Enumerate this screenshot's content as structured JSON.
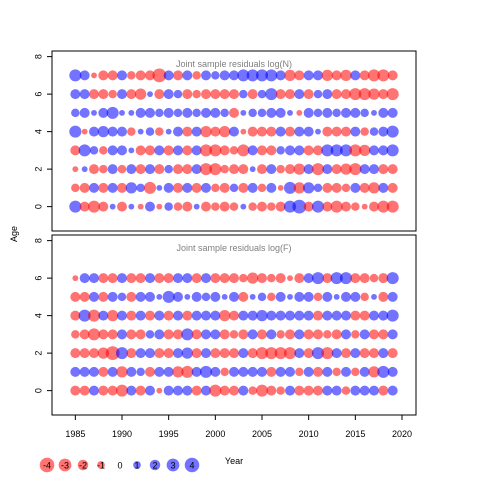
{
  "chart_data": {
    "type": "scatter",
    "encoding": "bubble",
    "xlabel": "Year",
    "ylabel": "Age",
    "xlim": [
      1982.5,
      2021.5
    ],
    "ylim": [
      -1.3,
      8.3
    ],
    "x_ticks": [
      "1985",
      "1990",
      "1995",
      "2000",
      "2005",
      "2010",
      "2015",
      "2020"
    ],
    "y_ticks": [
      "0",
      "2",
      "4",
      "6",
      "8"
    ],
    "years": [
      1985,
      1986,
      1987,
      1988,
      1989,
      1990,
      1991,
      1992,
      1993,
      1994,
      1995,
      1996,
      1997,
      1998,
      1999,
      2000,
      2001,
      2002,
      2003,
      2004,
      2005,
      2006,
      2007,
      2008,
      2009,
      2010,
      2011,
      2012,
      2013,
      2014,
      2015,
      2016,
      2017,
      2018,
      2019
    ],
    "colors": {
      "positive": "#0000ff",
      "negative": "#ff0000"
    },
    "panels": [
      {
        "title": "Joint sample residuals log(N)",
        "ages": [
          0,
          1,
          2,
          3,
          4,
          5,
          6,
          7
        ],
        "residuals": [
          [
            1.5,
            -1.0,
            -1.5,
            -1.0,
            0.3,
            -1.0,
            0.3,
            -0.3,
            1.0,
            -0.3,
            0.7,
            -0.7,
            -1.0,
            0.3,
            -1.0,
            -0.7,
            -1.0,
            -0.7,
            0.3,
            -0.7,
            -1.0,
            -0.7,
            -1.0,
            1.5,
            2.0,
            -1.0,
            1.5,
            -1.0,
            -1.5,
            -1.0,
            -0.7,
            -0.3,
            -1.0,
            -1.5,
            -1.5
          ],
          [
            -0.7,
            -1.0,
            1.0,
            -1.0,
            1.0,
            -1.0,
            1.3,
            0.7,
            -1.5,
            0.3,
            1.0,
            -1.0,
            1.0,
            -1.0,
            1.0,
            -0.7,
            -1.0,
            0.7,
            -1.0,
            1.0,
            -0.7,
            1.0,
            -0.3,
            1.5,
            -1.3,
            1.3,
            0.7,
            -1.0,
            -1.0,
            -0.7,
            1.0,
            -1.0,
            -1.3,
            1.0,
            -1.0
          ],
          [
            -0.3,
            0.3,
            -1.0,
            -0.7,
            1.0,
            -0.7,
            1.0,
            -1.0,
            1.0,
            -1.0,
            0.7,
            -1.0,
            -1.0,
            1.0,
            -1.5,
            -1.5,
            -0.7,
            -1.0,
            -1.0,
            0.3,
            -1.0,
            1.0,
            -0.7,
            -1.0,
            -1.3,
            1.0,
            -1.5,
            1.0,
            -1.0,
            -1.3,
            -1.5,
            1.0,
            1.0,
            -1.0,
            -1.0
          ],
          [
            -1.0,
            1.5,
            0.7,
            -0.7,
            1.0,
            1.0,
            0.3,
            -1.0,
            -1.0,
            1.0,
            -1.0,
            1.0,
            -1.0,
            1.0,
            -1.5,
            -1.5,
            -1.0,
            -0.7,
            -1.5,
            1.0,
            -1.0,
            -1.0,
            0.7,
            1.0,
            1.0,
            -1.0,
            -1.0,
            1.5,
            1.5,
            1.5,
            -1.5,
            -1.3,
            1.0,
            1.0,
            1.5
          ],
          [
            1.5,
            -0.3,
            1.0,
            1.3,
            1.0,
            1.0,
            -0.7,
            0.3,
            0.7,
            -0.7,
            0.3,
            1.0,
            -1.0,
            1.0,
            -1.3,
            -1.0,
            -1.3,
            1.0,
            -0.3,
            -1.0,
            -1.0,
            -1.0,
            1.0,
            -1.0,
            1.0,
            1.0,
            0.3,
            -1.0,
            -1.0,
            -1.0,
            1.0,
            -0.7,
            0.7,
            1.0,
            1.5
          ],
          [
            0.7,
            1.0,
            0.3,
            1.0,
            1.5,
            0.3,
            0.3,
            1.0,
            1.0,
            0.7,
            1.0,
            0.7,
            1.0,
            0.7,
            1.0,
            1.0,
            0.7,
            -1.0,
            0.3,
            0.7,
            0.7,
            1.0,
            1.0,
            0.3,
            -0.3,
            1.0,
            0.7,
            1.0,
            0.7,
            1.0,
            1.0,
            0.7,
            0.3,
            1.0,
            1.0
          ],
          [
            1.0,
            1.0,
            -1.0,
            -1.0,
            -0.7,
            1.0,
            -1.0,
            -1.3,
            0.3,
            -1.0,
            1.0,
            0.7,
            -1.0,
            -0.7,
            -1.0,
            -1.0,
            -1.0,
            -1.0,
            0.7,
            -1.0,
            0.7,
            1.5,
            -1.0,
            -1.0,
            1.0,
            -1.0,
            0.7,
            1.0,
            -1.0,
            -1.0,
            -1.5,
            -1.5,
            -1.3,
            -1.0,
            -1.5
          ],
          [
            1.5,
            1.0,
            -0.3,
            -1.0,
            -1.0,
            1.0,
            -0.7,
            -1.0,
            -1.0,
            -2.0,
            1.0,
            -1.0,
            1.0,
            -0.7,
            1.0,
            0.7,
            1.0,
            1.0,
            1.5,
            1.5,
            1.5,
            1.5,
            1.0,
            -1.3,
            -1.0,
            1.0,
            1.0,
            -1.3,
            -1.0,
            -1.3,
            1.0,
            -1.0,
            -1.5,
            -1.5,
            -1.0
          ]
        ]
      },
      {
        "title": "Joint sample residuals log(F)",
        "ages": [
          0,
          1,
          2,
          3,
          4,
          5,
          6
        ],
        "residuals": [
          [
            -1.0,
            -1.0,
            1.0,
            -1.0,
            -1.0,
            -1.5,
            1.0,
            -1.0,
            1.0,
            -0.3,
            1.0,
            1.0,
            1.0,
            -1.0,
            1.0,
            -1.5,
            -1.0,
            -1.0,
            1.0,
            -0.7,
            -1.5,
            -1.0,
            -0.7,
            1.0,
            -1.0,
            -1.0,
            -1.0,
            1.0,
            1.0,
            -0.7,
            1.0,
            1.0,
            1.0,
            -1.0,
            1.0
          ],
          [
            1.0,
            1.0,
            1.0,
            -1.0,
            1.0,
            -1.3,
            1.0,
            0.7,
            -1.0,
            1.0,
            1.0,
            -1.3,
            -1.5,
            1.0,
            1.5,
            1.0,
            -0.7,
            1.0,
            1.0,
            1.0,
            1.0,
            -1.0,
            1.0,
            1.0,
            -0.7,
            1.0,
            -1.0,
            1.0,
            -0.7,
            1.0,
            -0.7,
            1.0,
            -1.3,
            1.5,
            1.0
          ],
          [
            -1.0,
            -1.0,
            -1.0,
            -1.3,
            -2.0,
            1.5,
            -1.0,
            1.0,
            1.0,
            -1.0,
            -1.0,
            1.0,
            1.3,
            -1.0,
            1.0,
            -1.0,
            -1.0,
            -1.0,
            1.0,
            -1.0,
            -1.5,
            -1.5,
            -1.5,
            -1.5,
            1.0,
            -1.0,
            1.5,
            -1.5,
            1.0,
            -1.0,
            1.0,
            -1.0,
            -1.0,
            1.0,
            -1.0
          ],
          [
            -0.7,
            -1.0,
            -1.5,
            -1.0,
            -1.0,
            1.0,
            -1.0,
            -1.0,
            0.7,
            1.0,
            -1.0,
            -1.0,
            1.5,
            -1.0,
            1.0,
            1.0,
            -1.0,
            -0.7,
            -1.0,
            1.0,
            -1.0,
            1.0,
            -0.7,
            -1.0,
            1.0,
            -1.0,
            -1.0,
            -0.7,
            -1.0,
            1.0,
            -0.7,
            1.0,
            -1.0,
            -1.0,
            1.0
          ],
          [
            -1.0,
            1.5,
            -1.5,
            1.0,
            -1.3,
            1.0,
            -1.0,
            1.0,
            -1.0,
            1.0,
            -1.0,
            1.0,
            -1.0,
            1.0,
            1.0,
            1.0,
            -1.3,
            -1.0,
            1.0,
            1.0,
            1.3,
            1.0,
            1.0,
            1.0,
            1.0,
            1.0,
            -1.0,
            1.0,
            1.0,
            1.0,
            -1.0,
            -1.0,
            1.0,
            1.0,
            1.5
          ],
          [
            -1.0,
            -1.0,
            1.0,
            -1.0,
            1.0,
            0.7,
            -1.0,
            1.0,
            1.0,
            0.3,
            1.5,
            1.0,
            0.3,
            1.0,
            0.7,
            1.0,
            0.3,
            1.0,
            -1.0,
            0.3,
            0.7,
            -0.7,
            1.0,
            0.3,
            1.0,
            1.0,
            -0.7,
            1.0,
            0.3,
            1.0,
            1.0,
            -0.7,
            0.3,
            -1.0,
            1.0
          ],
          [
            -0.3,
            1.0,
            1.0,
            -1.0,
            -1.0,
            1.0,
            -1.0,
            -1.0,
            1.0,
            -1.0,
            -1.0,
            1.0,
            1.0,
            -1.0,
            1.0,
            -1.0,
            -1.0,
            -1.0,
            -0.7,
            -1.3,
            -1.0,
            -0.7,
            -1.0,
            -0.3,
            -1.0,
            1.0,
            1.5,
            -1.0,
            1.5,
            1.5,
            -1.0,
            -1.0,
            -0.7,
            -1.0,
            1.5
          ]
        ]
      }
    ],
    "legend": {
      "placement": "bottom-left",
      "labels": [
        "-4",
        "-3",
        "-2",
        "-1",
        "0",
        "1",
        "2",
        "3",
        "4"
      ],
      "values": [
        -4,
        -3,
        -2,
        -1,
        0,
        1,
        2,
        3,
        4
      ]
    }
  }
}
